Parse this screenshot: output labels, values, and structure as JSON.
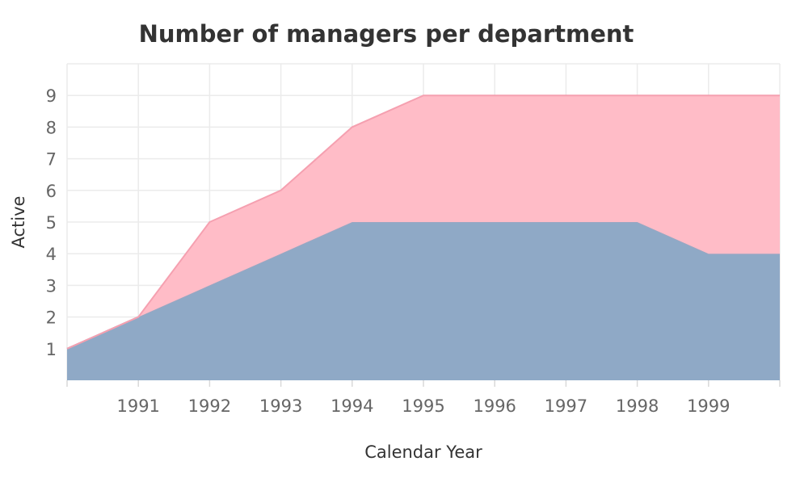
{
  "chart_data": {
    "type": "area",
    "stacked": true,
    "title": "Number of managers per department",
    "xlabel": "Calendar Year",
    "ylabel": "Active",
    "x": [
      1990,
      1991,
      1992,
      1993,
      1994,
      1995,
      1996,
      1997,
      1998,
      1999,
      2000
    ],
    "x_tick_labels": [
      "1991",
      "1992",
      "1993",
      "1994",
      "1995",
      "1996",
      "1997",
      "1998",
      "1999"
    ],
    "xlim": [
      1990,
      2000
    ],
    "y_ticks": [
      1,
      2,
      3,
      4,
      5,
      6,
      7,
      8,
      9
    ],
    "ylim": [
      0,
      10
    ],
    "grid": true,
    "legend": "none",
    "series": [
      {
        "values": [
          1,
          2,
          3,
          4,
          5,
          5,
          5,
          5,
          5,
          4,
          4
        ],
        "color": "#8fa9c6",
        "line_color": "#9aa7c2"
      },
      {
        "values": [
          0,
          0,
          2,
          2,
          3,
          4,
          4,
          4,
          4,
          5,
          5
        ],
        "color": "#ffbcc7",
        "line_color": "#f5a0b0"
      }
    ]
  }
}
